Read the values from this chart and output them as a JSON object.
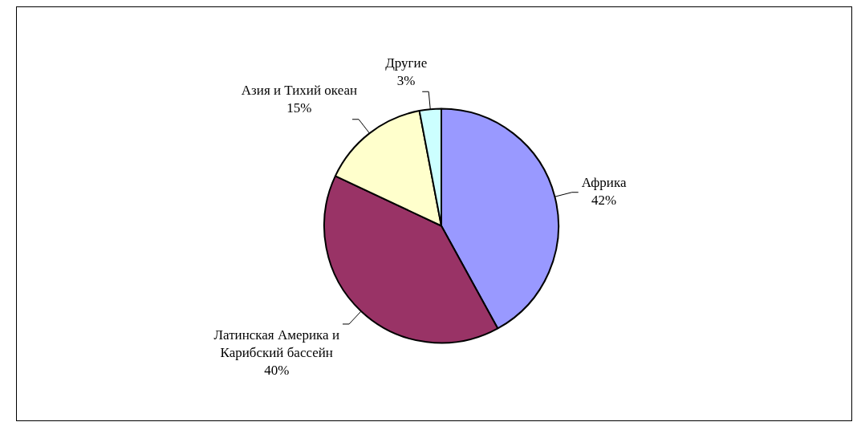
{
  "chart_data": {
    "type": "pie",
    "categories": [
      "Африка",
      "Латинская Америка и Карибский бассейн",
      "Азия и Тихий океан",
      "Другие"
    ],
    "values": [
      42,
      40,
      15,
      3
    ],
    "value_labels": [
      "42%",
      "40%",
      "15%",
      "3%"
    ],
    "colors": [
      "#9999ff",
      "#993366",
      "#ffffcc",
      "#ccffff"
    ],
    "legend": false
  }
}
